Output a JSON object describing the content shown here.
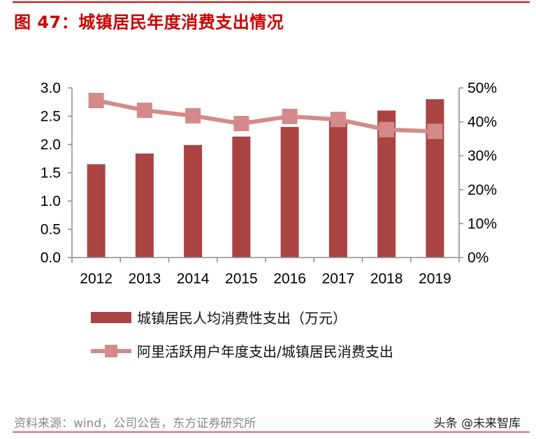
{
  "title": "图 47：城镇居民年度消费支出情况",
  "source": "资料来源：wind，公司公告，东方证券研究所",
  "watermark": "头条 @未来智库",
  "chart_data": {
    "type": "bar+line",
    "categories": [
      "2012",
      "2013",
      "2014",
      "2015",
      "2016",
      "2017",
      "2018",
      "2019"
    ],
    "series": [
      {
        "name": "城镇居民人均消费性支出（万元）",
        "type": "bar",
        "axis": "left",
        "color": "#a94442",
        "values": [
          1.65,
          1.84,
          1.99,
          2.14,
          2.31,
          2.44,
          2.6,
          2.8
        ]
      },
      {
        "name": "阿里活跃用户年度支出/城镇居民消费支出",
        "type": "line",
        "axis": "right",
        "color": "#d48a8a",
        "values": [
          46.3,
          43.4,
          41.8,
          39.5,
          41.6,
          40.7,
          37.7,
          37.2
        ]
      }
    ],
    "left_axis": {
      "ylim": [
        0,
        3.0
      ],
      "ticks": [
        "0.0",
        "0.5",
        "1.0",
        "1.5",
        "2.0",
        "2.5",
        "3.0"
      ]
    },
    "right_axis": {
      "ylim": [
        0,
        50
      ],
      "unit": "%",
      "ticks": [
        "0%",
        "10%",
        "20%",
        "30%",
        "40%",
        "50%"
      ]
    },
    "grid": false,
    "legend_position": "bottom"
  }
}
